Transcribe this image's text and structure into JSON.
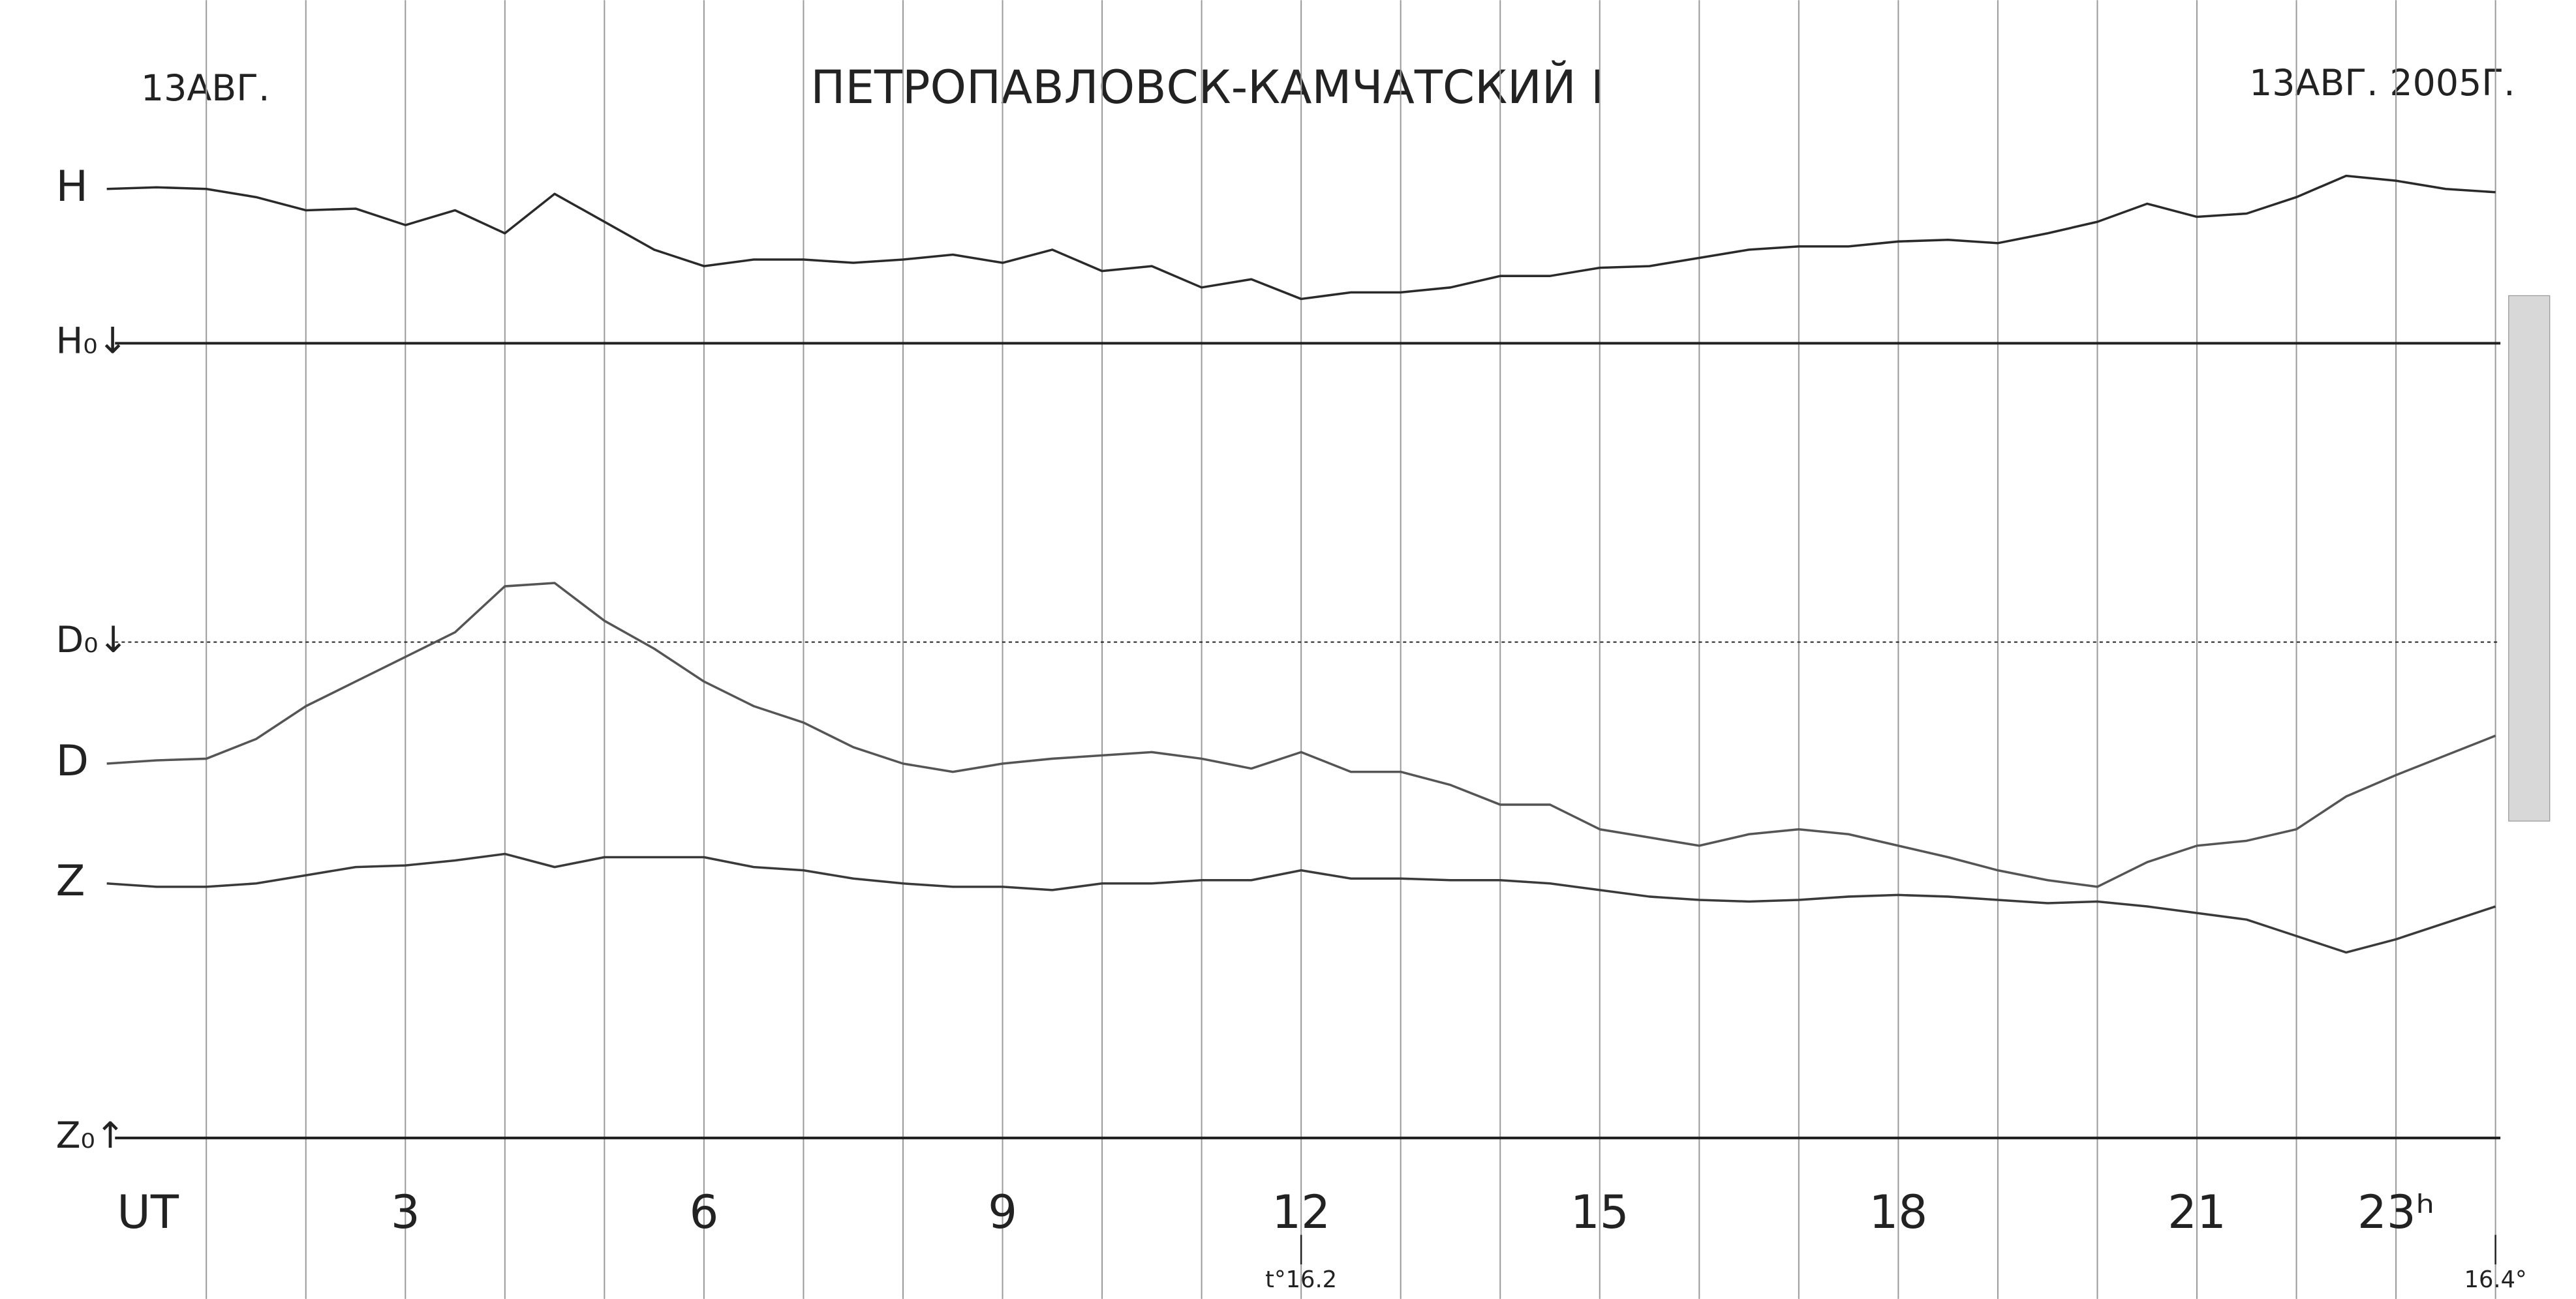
{
  "chart_data": {
    "type": "line",
    "title": "ПЕТРОПАВЛОВСК-КАМЧАТСКИЙ I",
    "date_left": "13АВГ.",
    "date_right": "13АВГ. 2005Г.",
    "x": [
      0,
      0.5,
      1,
      1.5,
      2,
      2.5,
      3,
      3.5,
      4,
      4.5,
      5,
      5.5,
      6,
      6.5,
      7,
      7.5,
      8,
      8.5,
      9,
      9.5,
      10,
      10.5,
      11,
      11.5,
      12,
      12.5,
      13,
      13.5,
      14,
      14.5,
      15,
      15.5,
      16,
      16.5,
      17,
      17.5,
      18,
      18.5,
      19,
      19.5,
      20,
      20.5,
      21,
      21.5,
      22,
      22.5,
      23,
      23.5,
      24
    ],
    "series": [
      {
        "name": "H",
        "color": "#2a2a2a",
        "values": [
          585,
          586,
          585,
          580,
          572,
          573,
          563,
          572,
          558,
          582,
          565,
          548,
          538,
          542,
          542,
          540,
          542,
          545,
          540,
          548,
          535,
          538,
          525,
          530,
          518,
          522,
          522,
          525,
          532,
          532,
          537,
          538,
          543,
          548,
          550,
          550,
          553,
          554,
          552,
          558,
          565,
          576,
          568,
          570,
          580,
          593,
          590,
          585,
          583
        ]
      },
      {
        "name": "D",
        "color": "#555555",
        "values": [
          235,
          237,
          238,
          250,
          270,
          285,
          300,
          315,
          343,
          345,
          322,
          305,
          285,
          270,
          260,
          245,
          235,
          230,
          235,
          238,
          240,
          242,
          238,
          232,
          242,
          230,
          230,
          222,
          210,
          210,
          195,
          190,
          185,
          192,
          195,
          192,
          185,
          178,
          170,
          164,
          160,
          175,
          185,
          188,
          195,
          215,
          228,
          240,
          252
        ]
      },
      {
        "name": "Z",
        "color": "#3a3a3a",
        "values": [
          162,
          160,
          160,
          162,
          167,
          172,
          173,
          176,
          180,
          172,
          178,
          178,
          178,
          172,
          170,
          165,
          162,
          160,
          160,
          158,
          162,
          162,
          164,
          164,
          170,
          165,
          165,
          164,
          164,
          162,
          158,
          154,
          152,
          151,
          152,
          154,
          155,
          154,
          152,
          150,
          151,
          148,
          144,
          140,
          130,
          120,
          128,
          138,
          148
        ]
      }
    ],
    "baselines": [
      {
        "label": "H₀↓",
        "value": 491
      },
      {
        "label": "D₀↓",
        "value": 309
      },
      {
        "label": "Z₀↑",
        "value": 7
      }
    ],
    "xlim": [
      0,
      24
    ],
    "ylim": [
      0,
      600
    ],
    "xticks": [
      {
        "value": 0,
        "label": "UT"
      },
      3,
      6,
      9,
      12,
      15,
      18,
      21,
      {
        "value": 23,
        "label": "23ʰ"
      }
    ],
    "xgrid": [
      1,
      2,
      3,
      4,
      5,
      6,
      7,
      8,
      9,
      10,
      11,
      12,
      13,
      14,
      15,
      16,
      17,
      18,
      19,
      20,
      21,
      22,
      23,
      24
    ],
    "annotations": [
      {
        "text": "t°16.2",
        "x": 12
      },
      {
        "text": "16.4°",
        "x": 24
      }
    ]
  }
}
